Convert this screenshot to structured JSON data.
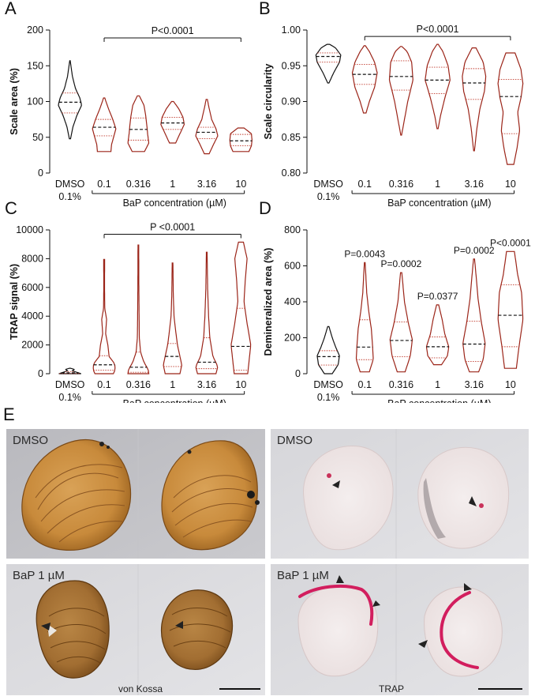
{
  "colors": {
    "control": "#111111",
    "treated": "#9b2418",
    "median": "#111111",
    "quartile": "#c0392b"
  },
  "chart_data": [
    {
      "panel": "A",
      "type": "violin",
      "categories": [
        "DMSO\n0.1%",
        "0.1",
        "0.316",
        "1",
        "3.16",
        "10"
      ],
      "xlabel": "BaP concentration (µM)",
      "ylabel": "Scale area (%)",
      "ylim": [
        0,
        200
      ],
      "yticks": [
        0,
        50,
        100,
        150,
        200
      ],
      "annotation": "P<0.0001",
      "series": [
        {
          "min": 48,
          "max": 157,
          "q1": 84,
          "median": 99,
          "q3": 112,
          "profile": [
            [
              48,
              0.05
            ],
            [
              65,
              0.25
            ],
            [
              80,
              0.55
            ],
            [
              95,
              0.95
            ],
            [
              105,
              0.8
            ],
            [
              118,
              0.45
            ],
            [
              135,
              0.2
            ],
            [
              157,
              0.02
            ]
          ]
        },
        {
          "min": 30,
          "max": 105,
          "q1": 52,
          "median": 64,
          "q3": 75,
          "profile": [
            [
              30,
              0.55
            ],
            [
              40,
              0.6
            ],
            [
              52,
              0.8
            ],
            [
              62,
              0.95
            ],
            [
              75,
              0.7
            ],
            [
              90,
              0.35
            ],
            [
              105,
              0.05
            ]
          ]
        },
        {
          "min": 30,
          "max": 108,
          "q1": 46,
          "median": 61,
          "q3": 77,
          "profile": [
            [
              30,
              0.5
            ],
            [
              42,
              0.85
            ],
            [
              55,
              0.75
            ],
            [
              65,
              0.7
            ],
            [
              80,
              0.6
            ],
            [
              95,
              0.45
            ],
            [
              108,
              0.08
            ]
          ]
        },
        {
          "min": 42,
          "max": 100,
          "q1": 61,
          "median": 70,
          "q3": 78,
          "profile": [
            [
              42,
              0.25
            ],
            [
              55,
              0.6
            ],
            [
              68,
              0.95
            ],
            [
              78,
              0.85
            ],
            [
              90,
              0.5
            ],
            [
              100,
              0.08
            ]
          ]
        },
        {
          "min": 27,
          "max": 103,
          "q1": 48,
          "median": 57,
          "q3": 64,
          "profile": [
            [
              27,
              0.2
            ],
            [
              40,
              0.55
            ],
            [
              52,
              0.9
            ],
            [
              62,
              0.75
            ],
            [
              75,
              0.4
            ],
            [
              90,
              0.2
            ],
            [
              103,
              0.05
            ]
          ]
        },
        {
          "min": 30,
          "max": 63,
          "q1": 38,
          "median": 45,
          "q3": 54,
          "profile": [
            [
              30,
              0.65
            ],
            [
              38,
              0.85
            ],
            [
              46,
              0.9
            ],
            [
              55,
              0.85
            ],
            [
              63,
              0.25
            ]
          ]
        }
      ]
    },
    {
      "panel": "B",
      "type": "violin",
      "categories": [
        "DMSO\n0.1%",
        "0.1",
        "0.316",
        "1",
        "3.16",
        "10"
      ],
      "xlabel": "BaP concentration (µM)",
      "ylabel": "Scale circularity",
      "ylim": [
        0.8,
        1.0
      ],
      "yticks": [
        0.8,
        0.85,
        0.9,
        0.95,
        1.0
      ],
      "annotation": "P<0.0001",
      "series": [
        {
          "min": 0.926,
          "max": 0.98,
          "q1": 0.955,
          "median": 0.963,
          "q3": 0.968,
          "profile": [
            [
              0.926,
              0.05
            ],
            [
              0.94,
              0.4
            ],
            [
              0.955,
              0.85
            ],
            [
              0.965,
              0.95
            ],
            [
              0.975,
              0.55
            ],
            [
              0.98,
              0.1
            ]
          ]
        },
        {
          "min": 0.884,
          "max": 0.978,
          "q1": 0.924,
          "median": 0.938,
          "q3": 0.952,
          "profile": [
            [
              0.884,
              0.1
            ],
            [
              0.9,
              0.35
            ],
            [
              0.92,
              0.75
            ],
            [
              0.94,
              0.95
            ],
            [
              0.955,
              0.75
            ],
            [
              0.97,
              0.35
            ],
            [
              0.978,
              0.05
            ]
          ]
        },
        {
          "min": 0.853,
          "max": 0.977,
          "q1": 0.916,
          "median": 0.935,
          "q3": 0.957,
          "profile": [
            [
              0.853,
              0.03
            ],
            [
              0.87,
              0.2
            ],
            [
              0.9,
              0.5
            ],
            [
              0.93,
              0.9
            ],
            [
              0.955,
              0.8
            ],
            [
              0.97,
              0.45
            ],
            [
              0.977,
              0.05
            ]
          ]
        },
        {
          "min": 0.862,
          "max": 0.98,
          "q1": 0.911,
          "median": 0.93,
          "q3": 0.948,
          "profile": [
            [
              0.862,
              0.04
            ],
            [
              0.88,
              0.22
            ],
            [
              0.905,
              0.55
            ],
            [
              0.93,
              0.95
            ],
            [
              0.95,
              0.8
            ],
            [
              0.97,
              0.4
            ],
            [
              0.98,
              0.05
            ]
          ]
        },
        {
          "min": 0.831,
          "max": 0.975,
          "q1": 0.903,
          "median": 0.926,
          "q3": 0.946,
          "profile": [
            [
              0.831,
              0.03
            ],
            [
              0.86,
              0.2
            ],
            [
              0.89,
              0.45
            ],
            [
              0.915,
              0.8
            ],
            [
              0.935,
              0.9
            ],
            [
              0.955,
              0.7
            ],
            [
              0.975,
              0.15
            ]
          ]
        },
        {
          "min": 0.812,
          "max": 0.968,
          "q1": 0.855,
          "median": 0.907,
          "q3": 0.931,
          "profile": [
            [
              0.812,
              0.25
            ],
            [
              0.835,
              0.5
            ],
            [
              0.86,
              0.7
            ],
            [
              0.885,
              0.55
            ],
            [
              0.905,
              0.8
            ],
            [
              0.925,
              0.95
            ],
            [
              0.945,
              0.8
            ],
            [
              0.968,
              0.35
            ]
          ]
        }
      ]
    },
    {
      "panel": "C",
      "type": "violin",
      "categories": [
        "DMSO\n0.1%",
        "0.1",
        "0.316",
        "1",
        "3.16",
        "10"
      ],
      "xlabel": "BaP concentration (µM)",
      "ylabel": "TRAP signal (%)",
      "ylim": [
        0,
        10000
      ],
      "yticks": [
        0,
        2000,
        4000,
        6000,
        8000,
        10000
      ],
      "annotation": "P <0.0001",
      "series": [
        {
          "min": 0,
          "max": 380,
          "q1": 10,
          "median": 60,
          "q3": 150,
          "profile": [
            [
              0,
              0.9
            ],
            [
              100,
              0.55
            ],
            [
              200,
              0.2
            ],
            [
              300,
              0.35
            ],
            [
              380,
              0.05
            ]
          ]
        },
        {
          "min": 0,
          "max": 7950,
          "q1": 250,
          "median": 620,
          "q3": 1250,
          "profile": [
            [
              0,
              0.75
            ],
            [
              300,
              0.9
            ],
            [
              700,
              0.85
            ],
            [
              1200,
              0.4
            ],
            [
              2000,
              0.3
            ],
            [
              2800,
              0.12
            ],
            [
              3800,
              0.2
            ],
            [
              4500,
              0.05
            ],
            [
              6000,
              0.03
            ],
            [
              7950,
              0.04
            ]
          ]
        },
        {
          "min": 0,
          "max": 8950,
          "q1": 100,
          "median": 450,
          "q3": 1500,
          "profile": [
            [
              0,
              0.85
            ],
            [
              300,
              0.8
            ],
            [
              800,
              0.45
            ],
            [
              1500,
              0.18
            ],
            [
              2500,
              0.08
            ],
            [
              4000,
              0.06
            ],
            [
              6000,
              0.04
            ],
            [
              8950,
              0.03
            ]
          ]
        },
        {
          "min": 0,
          "max": 7700,
          "q1": 500,
          "median": 1200,
          "q3": 2100,
          "profile": [
            [
              0,
              0.6
            ],
            [
              600,
              0.75
            ],
            [
              1200,
              0.6
            ],
            [
              2000,
              0.4
            ],
            [
              3000,
              0.25
            ],
            [
              4000,
              0.12
            ],
            [
              5500,
              0.06
            ],
            [
              7700,
              0.03
            ]
          ]
        },
        {
          "min": 0,
          "max": 8450,
          "q1": 350,
          "median": 800,
          "q3": 2500,
          "profile": [
            [
              0,
              0.75
            ],
            [
              500,
              0.9
            ],
            [
              1200,
              0.5
            ],
            [
              2500,
              0.25
            ],
            [
              4000,
              0.15
            ],
            [
              6000,
              0.07
            ],
            [
              8450,
              0.03
            ]
          ]
        },
        {
          "min": 0,
          "max": 9150,
          "q1": 250,
          "median": 1900,
          "q3": 4550,
          "profile": [
            [
              0,
              0.55
            ],
            [
              800,
              0.65
            ],
            [
              2000,
              0.8
            ],
            [
              3500,
              0.5
            ],
            [
              5000,
              0.25
            ],
            [
              6500,
              0.35
            ],
            [
              8000,
              0.5
            ],
            [
              9150,
              0.2
            ]
          ]
        }
      ]
    },
    {
      "panel": "D",
      "type": "violin",
      "categories": [
        "DMSO\n0.1%",
        "0.1",
        "0.316",
        "1",
        "3.16",
        "10"
      ],
      "xlabel": "BaP concentration (µM)",
      "ylabel": "Demineralized area (%)",
      "ylim": [
        0,
        800
      ],
      "yticks": [
        0,
        200,
        400,
        600,
        800
      ],
      "pvalues": [
        "",
        "P=0.0043",
        "P=0.0002",
        "P=0.0377",
        "P=0.0002",
        "P<0.0001"
      ],
      "series": [
        {
          "min": 0,
          "max": 262,
          "q1": 48,
          "median": 95,
          "q3": 128,
          "profile": [
            [
              0,
              0.3
            ],
            [
              50,
              0.75
            ],
            [
              100,
              0.85
            ],
            [
              150,
              0.55
            ],
            [
              200,
              0.3
            ],
            [
              262,
              0.05
            ]
          ]
        },
        {
          "min": 10,
          "max": 618,
          "q1": 78,
          "median": 148,
          "q3": 300,
          "profile": [
            [
              10,
              0.35
            ],
            [
              80,
              0.65
            ],
            [
              150,
              0.6
            ],
            [
              250,
              0.5
            ],
            [
              350,
              0.3
            ],
            [
              450,
              0.15
            ],
            [
              618,
              0.03
            ]
          ]
        },
        {
          "min": 10,
          "max": 562,
          "q1": 95,
          "median": 185,
          "q3": 288,
          "profile": [
            [
              10,
              0.3
            ],
            [
              100,
              0.7
            ],
            [
              190,
              0.85
            ],
            [
              280,
              0.55
            ],
            [
              400,
              0.25
            ],
            [
              562,
              0.05
            ]
          ]
        },
        {
          "min": 50,
          "max": 383,
          "q1": 88,
          "median": 150,
          "q3": 205,
          "profile": [
            [
              50,
              0.3
            ],
            [
              100,
              0.75
            ],
            [
              150,
              0.85
            ],
            [
              220,
              0.55
            ],
            [
              300,
              0.35
            ],
            [
              383,
              0.08
            ]
          ]
        },
        {
          "min": 10,
          "max": 638,
          "q1": 68,
          "median": 165,
          "q3": 292,
          "profile": [
            [
              10,
              0.35
            ],
            [
              80,
              0.7
            ],
            [
              170,
              0.85
            ],
            [
              290,
              0.55
            ],
            [
              420,
              0.3
            ],
            [
              550,
              0.15
            ],
            [
              638,
              0.04
            ]
          ]
        },
        {
          "min": 30,
          "max": 680,
          "q1": 150,
          "median": 325,
          "q3": 495,
          "profile": [
            [
              30,
              0.45
            ],
            [
              150,
              0.65
            ],
            [
              300,
              0.95
            ],
            [
              450,
              0.85
            ],
            [
              550,
              0.55
            ],
            [
              680,
              0.3
            ]
          ]
        }
      ]
    }
  ],
  "panel_e": {
    "label": "E",
    "cells": {
      "tl": {
        "label": "DMSO"
      },
      "tr": {
        "label": "DMSO"
      },
      "bl": {
        "label": "BaP 1 µM",
        "caption": "von Kossa"
      },
      "br": {
        "label": "BaP 1 µM",
        "caption": "TRAP"
      }
    }
  }
}
